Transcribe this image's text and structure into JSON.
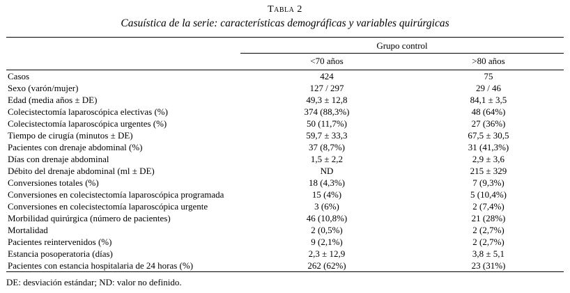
{
  "title": "Tabla 2",
  "subtitle": "Casuística de la serie: características demográficas y variables quirúrgicas",
  "table": {
    "group_header": "Grupo control",
    "col_headers": [
      "<70 años",
      ">80 años"
    ],
    "rows": [
      {
        "label": "Casos",
        "col1": "424",
        "col2": "75"
      },
      {
        "label": "Sexo (varón/mujer)",
        "col1": "127 / 297",
        "col2": "29 / 46"
      },
      {
        "label": "Edad (media años ± DE)",
        "col1": "49,3 ± 12,8",
        "col2": "84,1 ± 3,5"
      },
      {
        "label": "Colecistectomía laparoscópica electivas (%)",
        "col1": "374 (88,3%)",
        "col2": "48 (64%)"
      },
      {
        "label": "Colecistectomía laparoscópica urgentes (%)",
        "col1": "50 (11,7%)",
        "col2": "27 (36%)"
      },
      {
        "label": "Tiempo de cirugía (minutos ± DE)",
        "col1": "59,7 ± 33,3",
        "col2": "67,5 ± 30,5"
      },
      {
        "label": "Pacientes con drenaje abdominal (%)",
        "col1": "37 (8,7%)",
        "col2": "31 (41,3%)"
      },
      {
        "label": "Días con drenaje abdominal",
        "col1": "1,5 ± 2,2",
        "col2": "2,9 ± 3,6"
      },
      {
        "label": "Débito del drenaje abdominal (ml ± DE)",
        "col1": "ND",
        "col2": "215 ± 329"
      },
      {
        "label": "Conversiones totales (%)",
        "col1": "18 (4,3%)",
        "col2": "7 (9,3%)"
      },
      {
        "label": "Conversiones en colecistectomía laparoscópica programada",
        "col1": "15 (4%)",
        "col2": "5 (10,4%)"
      },
      {
        "label": "Conversiones en colecistectomía laparoscópica urgente",
        "col1": "3 (6%)",
        "col2": "2 (7,4%)"
      },
      {
        "label": "Morbilidad quirúrgica (número de pacientes)",
        "col1": "46 (10,8%)",
        "col2": "21 (28%)"
      },
      {
        "label": "Mortalidad",
        "col1": "2 (0,5%)",
        "col2": "2 (2,7%)"
      },
      {
        "label": "Pacientes reintervenidos (%)",
        "col1": "9 (2,1%)",
        "col2": "2 (2,7%)"
      },
      {
        "label": "Estancia posoperatoria (días)",
        "col1": "2,3 ± 12,9",
        "col2": "3,8 ± 5,1"
      },
      {
        "label": "Pacientes con estancia hospitalaria de 24 horas (%)",
        "col1": "262 (62%)",
        "col2": "23 (31%)"
      }
    ]
  },
  "footnote": "DE: desviación estándar; ND: valor no definido."
}
